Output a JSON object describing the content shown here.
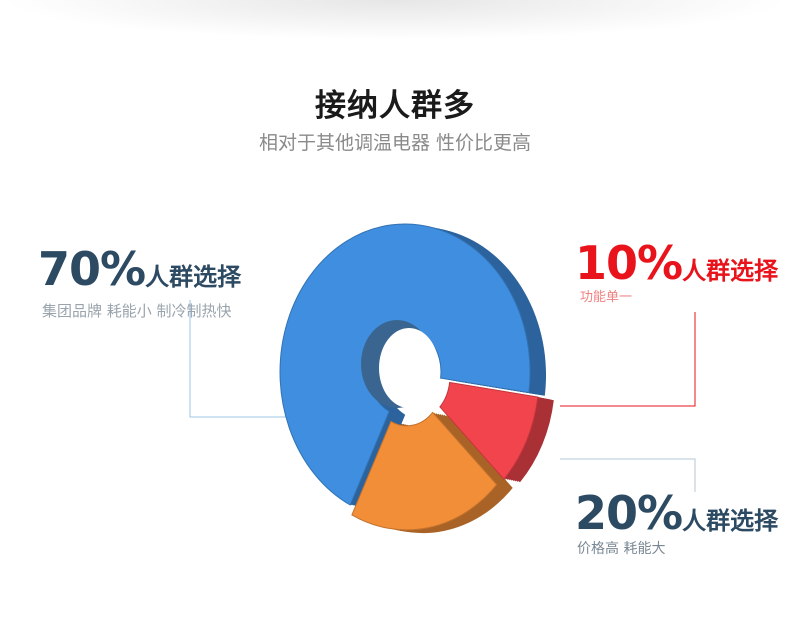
{
  "header": {
    "title": "接纳人群多",
    "subtitle": "相对于其他调温电器 性价比更高"
  },
  "colors": {
    "blue": "#3f8ee0",
    "red": "#f2444c",
    "orange": "#f28e38",
    "dark_text": "#2d4a63",
    "red_text": "#e8131b"
  },
  "chart_data": {
    "type": "pie",
    "style": "3d-donut",
    "slices": [
      {
        "label": "人群选择",
        "value": 10,
        "percent_text": "10%",
        "description": "功能单一",
        "color": "#f2444c"
      },
      {
        "label": "人群选择",
        "value": 20,
        "percent_text": "20%",
        "description": "价格高 耗能大",
        "color": "#f28e38"
      },
      {
        "label": "人群选择",
        "value": 70,
        "percent_text": "70%",
        "description": "集团品牌  耗能小  制冷制热快",
        "color": "#3f8ee0"
      }
    ]
  }
}
